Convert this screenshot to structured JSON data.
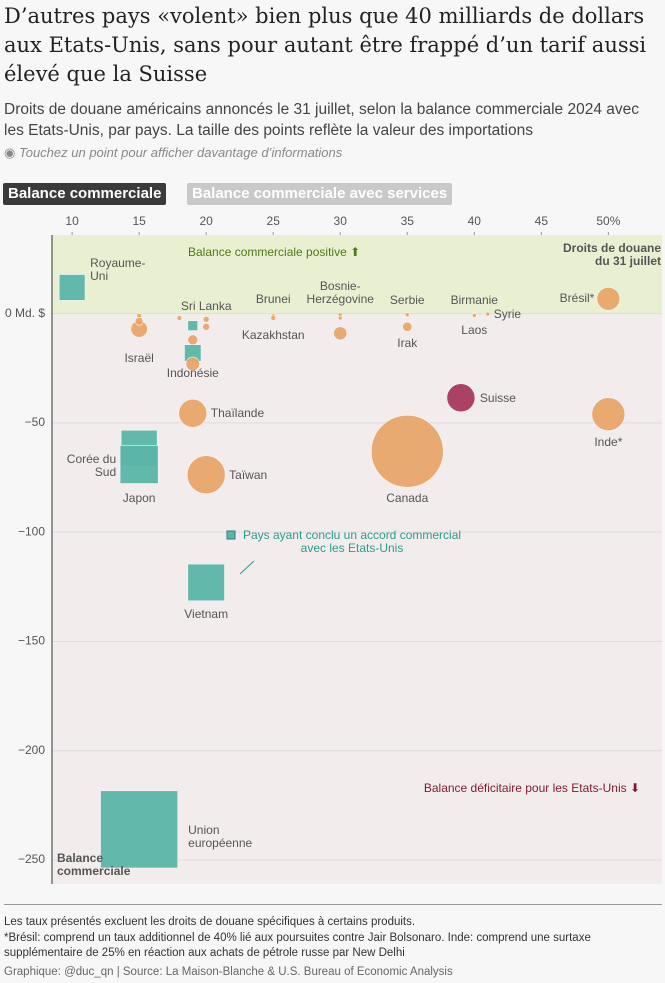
{
  "chart_data": {
    "type": "bubble",
    "title": "D’autres pays «volent» bien plus que 40 milliards de dollars aux Etats-Unis, sans pour autant être frappé d’un tarif aussi élevé que la Suisse",
    "subtitle": "Droits de douane américains annoncés le 31 juillet, selon la balance commerciale 2024 avec les Etats-Unis, par pays. La taille des points reflète la valeur des importations",
    "hint": "Touchez un point pour afficher davantage d’informations",
    "buttons": [
      "Balance commerciale",
      "Balance commerciale avec services"
    ],
    "x_label": "Droits de douane\ndu 31 juillet",
    "y_label": "Balance\ncommerciale",
    "annotations": [
      "Balance commerciale positive ⬆",
      "Pays ayant conclu un accord commercial\navec les Etats-Unis",
      "Balance déficitaire pour les Etats-Unis ⬇"
    ],
    "xlim": [
      8.5,
      54
    ],
    "xticks": [
      10,
      15,
      20,
      25,
      30,
      35,
      40,
      45,
      {
        "value": 50,
        "label": "50%"
      }
    ],
    "ylim": [
      -261,
      36
    ],
    "yticks": [
      {
        "value": 0,
        "label": "0 Md. $"
      },
      {
        "value": -50,
        "label": "−50"
      },
      {
        "value": -100,
        "label": "−100"
      },
      {
        "value": -150,
        "label": "−150"
      },
      {
        "value": -200,
        "label": "−200"
      },
      {
        "value": -250,
        "label": "−250"
      }
    ],
    "grid": true,
    "positive_color": "#e9f0d2",
    "negative_color": "#f2ecec",
    "labels": [
      "Royaume-\nUni",
      "Israël",
      null,
      null,
      "Sri Lanka",
      null,
      null,
      null,
      null,
      "Indonésie",
      null,
      "Thaïlande",
      "Brunei",
      "Kazakhstan",
      "Bosnie-\nHerzégovine",
      null,
      null,
      "Serbie",
      "Irak",
      "Birmanie",
      "Laos",
      "Syrie",
      "Brésil*",
      "Inde*",
      "Suisse",
      "Canada",
      "Corée du\nSud",
      "Japon",
      "Taïwan",
      "Vietnam",
      "Union\neuropéenne"
    ],
    "x": [
      10,
      15,
      15,
      15,
      20,
      20,
      18,
      19,
      19,
      19,
      19,
      19,
      25,
      25,
      30,
      30,
      30,
      35,
      35,
      40,
      40,
      41,
      50,
      50,
      39,
      35,
      15,
      15,
      20,
      20,
      15
    ],
    "values": [
      12,
      -7,
      -1,
      -3.5,
      -2.6,
      -6,
      -2,
      -5.5,
      -12,
      -18,
      -23,
      -45.6,
      -1,
      -2,
      -0.5,
      -9,
      -2,
      -0.5,
      -6,
      -0.6,
      -0.8,
      -0.2,
      6.8,
      -46,
      -38.5,
      -63,
      -61.6,
      -69,
      -73.7,
      -123,
      -236
    ],
    "sizes": [
      68,
      22,
      2,
      5,
      3,
      4,
      2,
      10,
      8,
      28,
      15,
      63,
      0.2,
      2,
      0.2,
      14,
      1,
      0.5,
      7,
      0.7,
      0.8,
      0.02,
      42,
      87,
      63,
      413,
      132,
      148,
      116,
      137,
      606
    ],
    "deal": [
      true,
      false,
      false,
      false,
      false,
      false,
      false,
      true,
      false,
      true,
      false,
      false,
      false,
      false,
      false,
      false,
      false,
      false,
      false,
      false,
      false,
      false,
      false,
      false,
      false,
      false,
      true,
      true,
      false,
      true,
      true
    ],
    "colors": [
      "#5bb5a9",
      "#e8a466",
      "#e8a466",
      "#e8a466",
      "#e8a466",
      "#e8a466",
      "#e8a466",
      "#5bb5a9",
      "#e8a466",
      "#5bb5a9",
      "#e8a466",
      "#e8a466",
      "#e8a466",
      "#e8a466",
      "#e8a466",
      "#e8a466",
      "#e8a466",
      "#e8a466",
      "#e8a466",
      "#e8a466",
      "#e8a466",
      "#e8a466",
      "#e8a466",
      "#e8a466",
      "#a6325a",
      "#e8a466",
      "#5bb5a9",
      "#5bb5a9",
      "#e8a466",
      "#5bb5a9",
      "#5bb5a9"
    ],
    "notes": [
      "Les taux présentés excluent les droits de douane spécifiques à certains produits.",
      "*Brésil: comprend un taux additionnel de 40% lié aux poursuites contre Jair Bolsonaro. Inde: comprend une surtaxe supplémentaire de 25% en réaction aux achats de pétrole russe par New Delhi"
    ],
    "credit": "Graphique: @duc_qn",
    "source": "Source: La Maison-Blanche & U.S. Bureau of Economic Analysis"
  }
}
